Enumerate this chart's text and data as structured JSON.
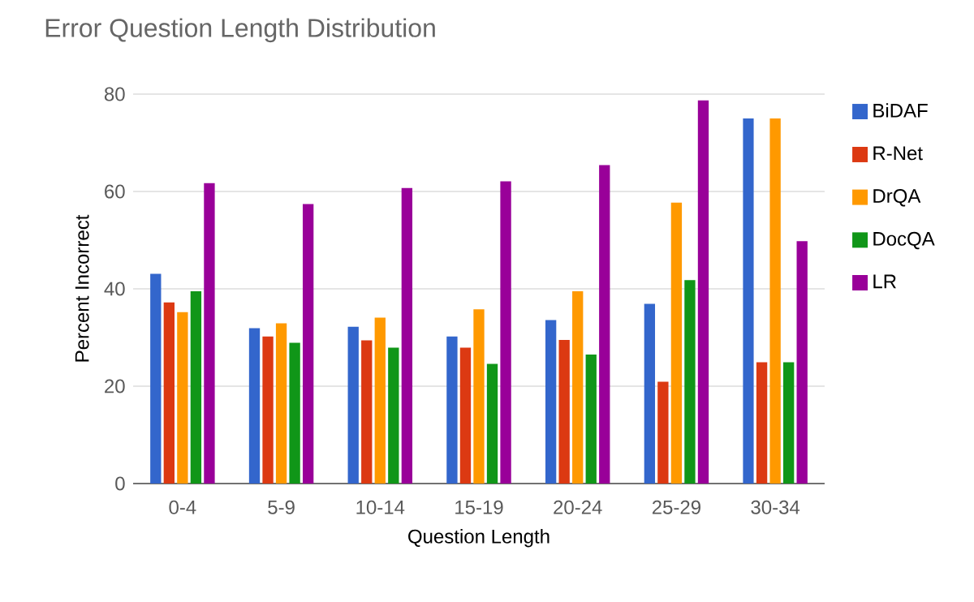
{
  "chart_data": {
    "type": "bar",
    "title": "Error Question Length Distribution",
    "xlabel": "Question Length",
    "ylabel": "Percent Incorrect",
    "categories": [
      "0-4",
      "5-9",
      "10-14",
      "15-19",
      "20-24",
      "25-29",
      "30-34"
    ],
    "series": [
      {
        "name": "BiDAF",
        "color": "#3366cc",
        "values": [
          43.1,
          31.9,
          32.2,
          30.2,
          33.6,
          36.9,
          75
        ]
      },
      {
        "name": "R-Net",
        "color": "#dc3912",
        "values": [
          37.2,
          30.2,
          29.4,
          27.9,
          29.5,
          20.9,
          24.9
        ]
      },
      {
        "name": "DrQA",
        "color": "#ff9900",
        "values": [
          35.2,
          32.9,
          34.1,
          35.8,
          39.5,
          57.7,
          75
        ]
      },
      {
        "name": "DocQA",
        "color": "#109618",
        "values": [
          39.5,
          28.9,
          27.9,
          24.6,
          26.5,
          41.8,
          24.9
        ]
      },
      {
        "name": "LR",
        "color": "#990099",
        "values": [
          61.7,
          57.4,
          60.7,
          62.1,
          65.4,
          78.7,
          49.8
        ]
      }
    ],
    "ylim": [
      0,
      80
    ],
    "yticks": [
      0,
      20,
      40,
      60,
      80
    ],
    "grid": "y",
    "legend": "right"
  }
}
